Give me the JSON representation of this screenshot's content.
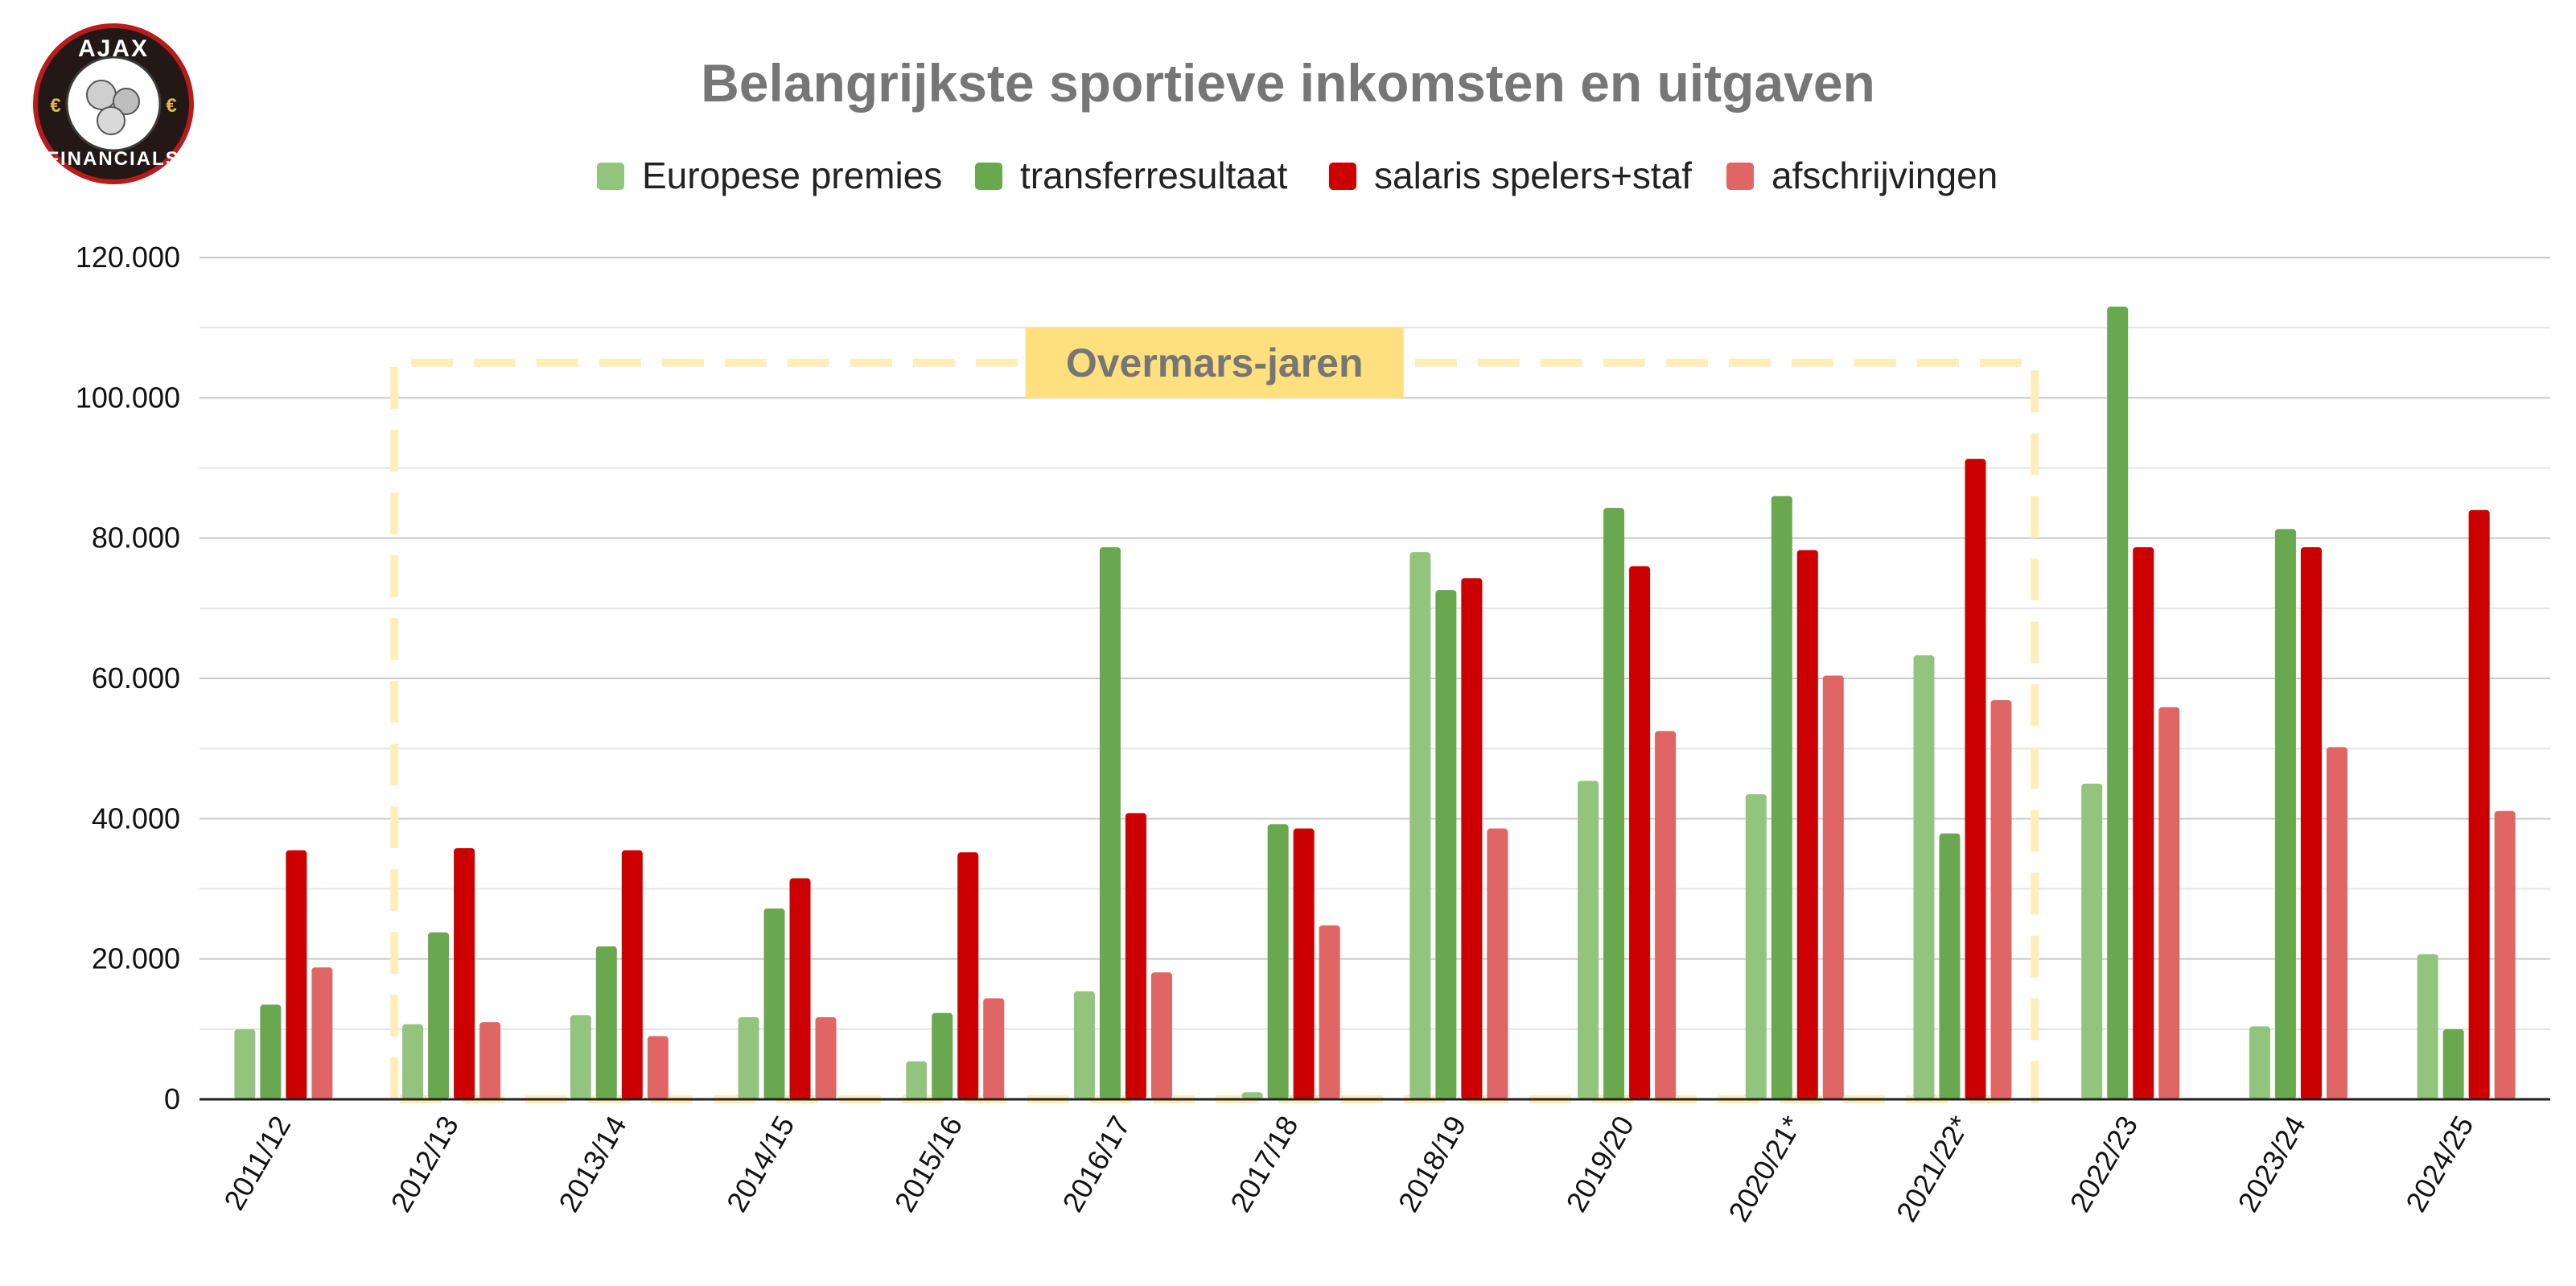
{
  "logo": {
    "top_text": "AJAX",
    "bottom_text": "FINANCIALS",
    "symbol": "€"
  },
  "chart_data": {
    "type": "bar",
    "title": "Belangrijkste sportieve inkomsten en uitgaven",
    "xlabel": "",
    "ylabel": "",
    "ylim": [
      0,
      120000
    ],
    "yticks": [
      0,
      20000,
      40000,
      60000,
      80000,
      100000,
      120000
    ],
    "ytick_labels": [
      "0",
      "20.000",
      "40.000",
      "60.000",
      "80.000",
      "100.000",
      "120.000"
    ],
    "grid": true,
    "legend_position": "top",
    "categories": [
      "2011/12",
      "2012/13",
      "2013/14",
      "2014/15",
      "2015/16",
      "2016/17",
      "2017/18",
      "2018/19",
      "2019/20",
      "2020/21*",
      "2021/22*",
      "2022/23",
      "2023/24",
      "2024/25"
    ],
    "series": [
      {
        "name": "Europese premies",
        "color": "#93c47d",
        "values": [
          10000,
          10700,
          12000,
          11700,
          5400,
          15400,
          1000,
          78000,
          45400,
          43500,
          63300,
          45000,
          10400,
          20700
        ]
      },
      {
        "name": "transferresultaat",
        "color": "#6aa84f",
        "values": [
          13500,
          23800,
          21800,
          27200,
          12300,
          78700,
          39200,
          72600,
          84300,
          86000,
          37900,
          113000,
          81300,
          10000
        ]
      },
      {
        "name": "salaris spelers+staf",
        "color": "#cc0000",
        "values": [
          35500,
          35800,
          35500,
          31500,
          35200,
          40800,
          38600,
          74300,
          76000,
          78300,
          91300,
          78700,
          78700,
          84000
        ]
      },
      {
        "name": "afschrijvingen",
        "color": "#e06666",
        "values": [
          18800,
          11000,
          9000,
          11700,
          14400,
          18100,
          24800,
          38600,
          52500,
          60400,
          56900,
          55900,
          50200,
          41100
        ]
      }
    ],
    "annotations": [
      {
        "text": "Overmars-jaren",
        "style": "dashed-box",
        "from": "2012/13",
        "to": "2021/22*",
        "top_value": 105000,
        "color": "#ffeeba",
        "label_bg": "#ffe07f"
      }
    ]
  }
}
